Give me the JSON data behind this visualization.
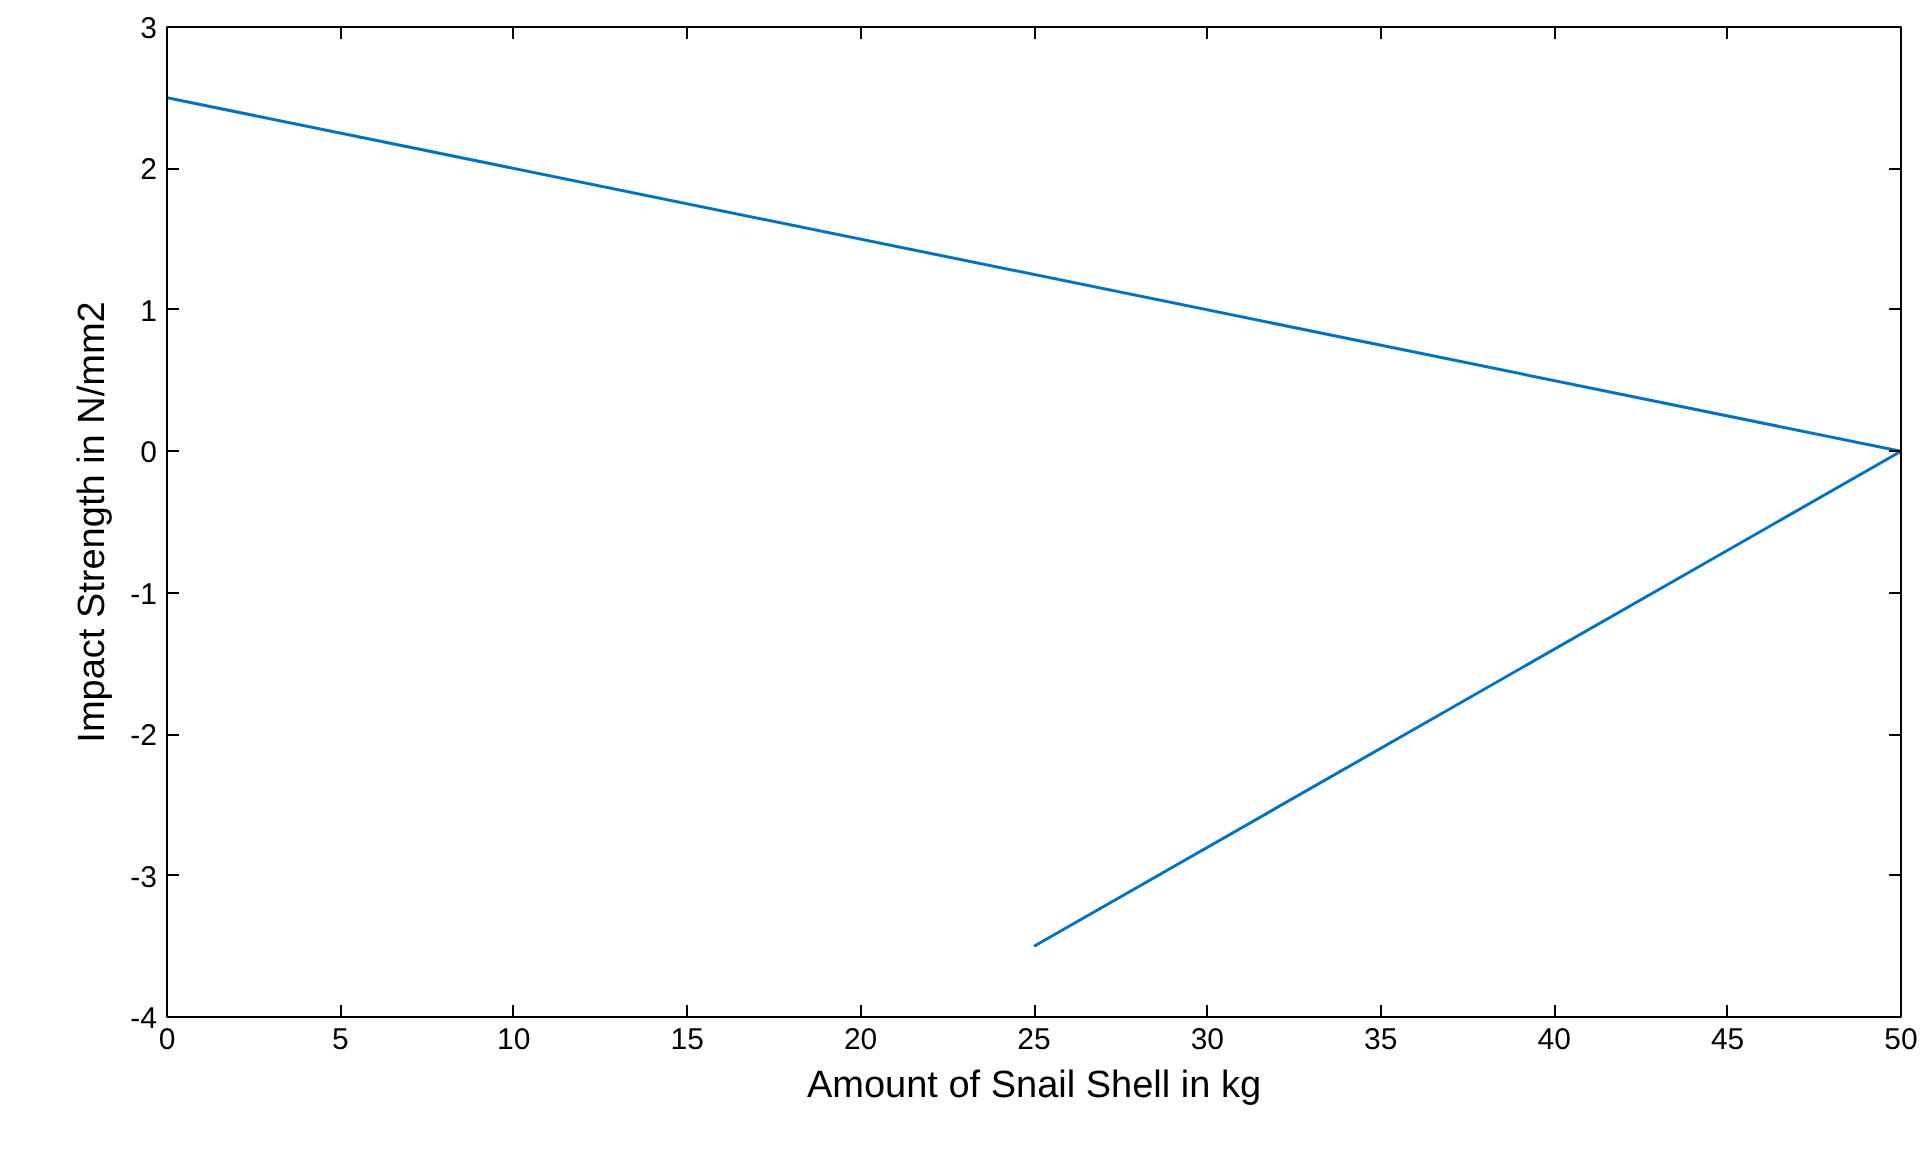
{
  "chart_data": {
    "type": "line",
    "xlabel": "Amount of Snail Shell in kg",
    "ylabel": "Impact Strength in N/mm2",
    "x": [
      0,
      50,
      25
    ],
    "series": [
      {
        "color": "#0072bd",
        "values": [
          2.5,
          0,
          -3.5
        ]
      }
    ],
    "xlim": [
      0,
      50
    ],
    "ylim": [
      -4,
      3
    ],
    "xticks": [
      0,
      5,
      10,
      15,
      20,
      25,
      30,
      35,
      40,
      45,
      50
    ],
    "yticks": [
      -4,
      -3,
      -2,
      -1,
      0,
      1,
      2,
      3
    ],
    "grid": false
  }
}
